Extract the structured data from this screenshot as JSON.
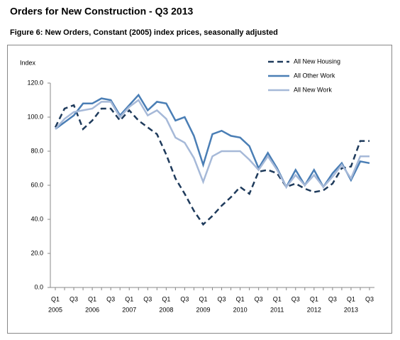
{
  "chart_data": {
    "type": "line",
    "title": "Orders for New Construction - Q3 2013",
    "subtitle": "Figure 6: New Orders, Constant (2005) index prices, seasonally adjusted",
    "ylabel": "Index",
    "categories": [
      "Q1",
      null,
      "Q3",
      null,
      "Q1",
      null,
      "Q3",
      null,
      "Q1",
      null,
      "Q3",
      null,
      "Q1",
      null,
      "Q3",
      null,
      "Q1",
      null,
      "Q3",
      null,
      "Q1",
      null,
      "Q3",
      null,
      "Q1",
      null,
      "Q3",
      null,
      "Q1",
      null,
      "Q3",
      null,
      "Q1",
      null,
      "Q3"
    ],
    "category_groups": [
      "2005",
      "2006",
      "2007",
      "2008",
      "2009",
      "2010",
      "2011",
      "2012",
      "2013"
    ],
    "series": [
      {
        "name": "All New Housing",
        "color": "#1f3b5c",
        "dashed": true,
        "values": [
          94,
          105,
          107,
          93,
          98,
          105,
          105,
          98,
          104,
          98,
          94,
          90,
          78,
          64,
          55,
          45,
          37,
          42,
          48,
          53,
          59,
          55,
          68,
          69,
          67,
          59,
          61,
          58,
          56,
          57,
          61,
          70,
          71,
          86,
          86
        ]
      },
      {
        "name": "All Other Work",
        "color": "#4a7eb5",
        "dashed": false,
        "values": [
          93,
          97,
          101,
          108,
          108,
          111,
          110,
          101,
          107,
          113,
          104,
          109,
          108,
          98,
          100,
          89,
          72,
          90,
          92,
          89,
          88,
          83,
          70,
          79,
          70,
          59,
          69,
          60,
          69,
          59,
          67,
          73,
          63,
          74,
          73
        ]
      },
      {
        "name": "All New Work",
        "color": "#a6b9d8",
        "dashed": false,
        "values": [
          93,
          99,
          103,
          104,
          105,
          109,
          109,
          100,
          106,
          110,
          101,
          104,
          99,
          88,
          85,
          76,
          62,
          77,
          80,
          80,
          80,
          75,
          69,
          77,
          69,
          59,
          66,
          60,
          66,
          59,
          65,
          72,
          64,
          77,
          77
        ]
      }
    ],
    "ylim": [
      0,
      120
    ],
    "yticks": [
      {
        "value": 0,
        "label": "0.0"
      },
      {
        "value": 20,
        "label": "20.0"
      },
      {
        "value": 40,
        "label": "40.0"
      },
      {
        "value": 60,
        "label": "60.0"
      },
      {
        "value": 80,
        "label": "80.0"
      },
      {
        "value": 100,
        "label": "100.0"
      },
      {
        "value": 120,
        "label": "120.0"
      }
    ],
    "legend": "upper right"
  }
}
